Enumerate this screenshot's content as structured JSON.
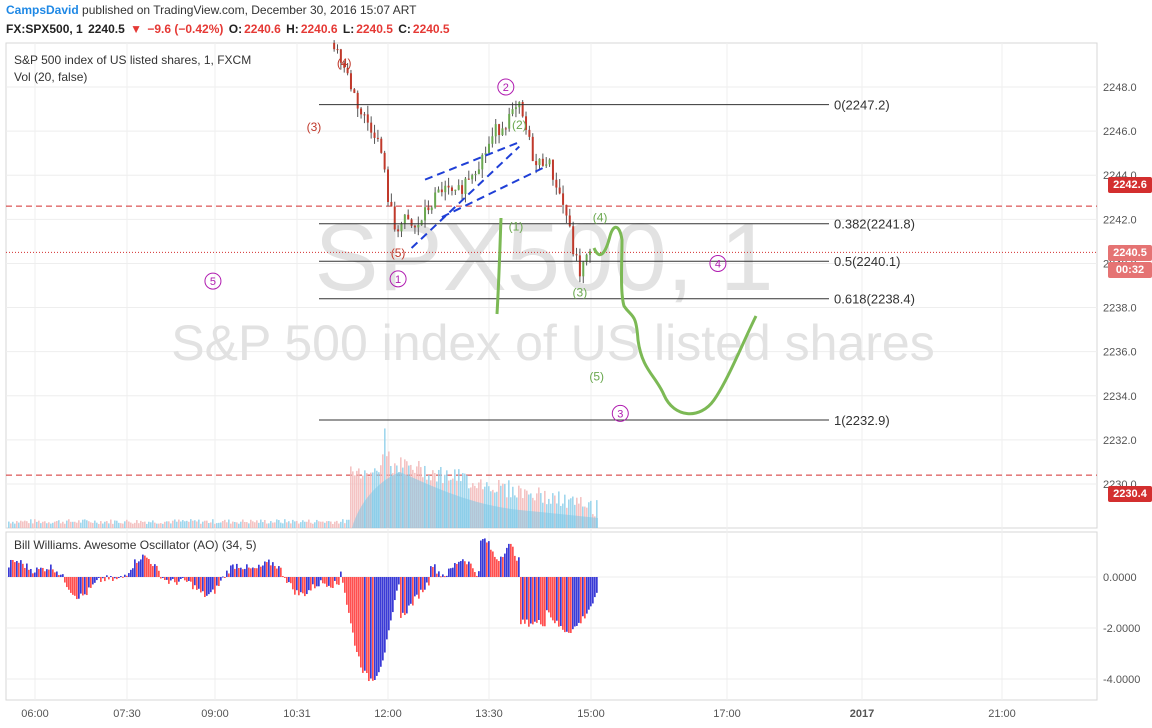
{
  "header": {
    "author": "CampsDavid",
    "published_text": "published on TradingView.com, December 30, 2016 15:07 ART",
    "symbol": "FX:SPX500, 1",
    "last": "2240.5",
    "change": "−9.6 (−0.42%)",
    "open_label": "O:",
    "open": "2240.6",
    "high_label": "H:",
    "high": "2240.6",
    "low_label": "L:",
    "low": "2240.5",
    "close_label": "C:",
    "close": "2240.5"
  },
  "legend": {
    "main": "S&P 500 index of US listed shares, 1, FXCM",
    "volume": "Vol (20, false)",
    "oscillator": "Bill Williams. Awesome Oscillator (AO) (34, 5)"
  },
  "watermark": {
    "symbol": "SPX500, 1",
    "name": "S&P 500 index of US listed shares"
  },
  "price_tags": {
    "upper_level": "2242.6",
    "last_price": "2240.5",
    "countdown": "00:32",
    "lower_level": "2230.4"
  },
  "colors": {
    "up": "#6aa84f",
    "down": "#c0392b",
    "candle": "#555555",
    "dashed_level": "#d32f2f",
    "fib": "#333333",
    "wedge": "#1f3fd6",
    "projection": "#7cb955",
    "count_magenta": "#b01cb0",
    "ao_red": "#ff4f4f",
    "ao_blue": "#3a3ad6",
    "volume": "#7ec7e6"
  },
  "chart_data": {
    "type": "candlestick",
    "symbol": "SPX500",
    "timeframe": "1",
    "ylim": [
      2229,
      2250
    ],
    "price_ticks": [
      "2248.0",
      "2246.0",
      "2244.0",
      "2242.0",
      "2240.0",
      "2238.0",
      "2236.0",
      "2234.0",
      "2232.0",
      "2230.0"
    ],
    "time_ticks": [
      "06:00",
      "07:30",
      "09:00",
      "10:31",
      "12:00",
      "13:30",
      "15:00",
      "17:00",
      "2017",
      "21:00"
    ],
    "dashed_levels": [
      2242.6,
      2230.4
    ],
    "last_price": 2240.5,
    "price_path": [
      [
        11.2,
        2250.0
      ],
      [
        11.4,
        2248.5
      ],
      [
        11.6,
        2246.8
      ],
      [
        11.8,
        2246.0
      ],
      [
        11.9,
        2245.0
      ],
      [
        12.0,
        2243.0
      ],
      [
        12.1,
        2241.6
      ],
      [
        12.25,
        2241.9
      ],
      [
        12.4,
        2241.5
      ],
      [
        12.6,
        2242.5
      ],
      [
        12.8,
        2243.4
      ],
      [
        13.0,
        2243.0
      ],
      [
        13.2,
        2244.0
      ],
      [
        13.4,
        2244.8
      ],
      [
        13.6,
        2246.0
      ],
      [
        13.8,
        2246.6
      ],
      [
        13.95,
        2247.0
      ],
      [
        14.05,
        2246.0
      ],
      [
        14.2,
        2244.4
      ],
      [
        14.35,
        2244.8
      ],
      [
        14.5,
        2243.6
      ],
      [
        14.65,
        2242.2
      ],
      [
        14.75,
        2240.6
      ],
      [
        14.85,
        2239.6
      ],
      [
        14.95,
        2240.2
      ],
      [
        15.05,
        2240.5
      ]
    ],
    "fibonacci": [
      {
        "label": "0(2247.2)",
        "price": 2247.2
      },
      {
        "label": "0.382(2241.8)",
        "price": 2241.8
      },
      {
        "label": "0.5(2240.1)",
        "price": 2240.1
      },
      {
        "label": "0.618(2238.4)",
        "price": 2238.4
      },
      {
        "label": "1(2232.9)",
        "price": 2232.9
      }
    ],
    "wave_counts_red": [
      {
        "label": "(4)",
        "t": 11.35,
        "p": 2248.9
      },
      {
        "label": "(3)",
        "t": 10.9,
        "p": 2246.0
      },
      {
        "label": "(5)",
        "t": 12.15,
        "p": 2240.3
      }
    ],
    "wave_counts_green": [
      {
        "label": "(2)",
        "t": 13.95,
        "p": 2246.1
      },
      {
        "label": "(1)",
        "t": 13.9,
        "p": 2241.5
      },
      {
        "label": "(4)",
        "t": 15.15,
        "p": 2241.9
      },
      {
        "label": "(3)",
        "t": 14.85,
        "p": 2238.5
      },
      {
        "label": "(5)",
        "t": 15.1,
        "p": 2234.7
      }
    ],
    "wave_counts_circled": [
      {
        "label": "2",
        "t": 13.75,
        "p": 2248.0
      },
      {
        "label": "1",
        "t": 12.15,
        "p": 2239.3
      },
      {
        "label": "5",
        "t": 9.4,
        "p": 2239.2
      },
      {
        "label": "4",
        "t": 16.9,
        "p": 2240.0
      },
      {
        "label": "3",
        "t": 15.45,
        "p": 2233.2
      }
    ],
    "ao_ticks": [
      "0.0000",
      "-2.0000",
      "-4.0000"
    ],
    "ao_ylim": [
      -4.5,
      1.8
    ]
  }
}
